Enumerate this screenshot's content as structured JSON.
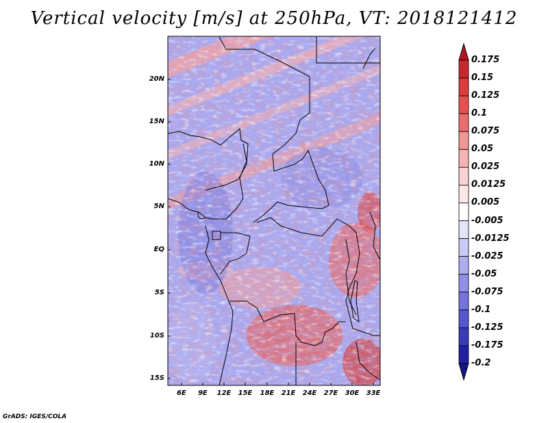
{
  "title": "Vertical velocity [m/s] at 250hPa, VT: 2018121412",
  "footer": "GrADS: IGES/COLA",
  "map": {
    "lat_labels": [
      "20N",
      "15N",
      "10N",
      "5N",
      "EQ",
      "5S",
      "10S",
      "15S"
    ],
    "lon_labels": [
      "6E",
      "9E",
      "12E",
      "15E",
      "18E",
      "21E",
      "24E",
      "27E",
      "30E",
      "33E"
    ]
  },
  "colorbar": {
    "levels": [
      "0.175",
      "0.15",
      "0.125",
      "0.1",
      "0.075",
      "0.05",
      "0.025",
      "0.0125",
      "0.005",
      "-0.005",
      "-0.0125",
      "-0.025",
      "-0.05",
      "-0.075",
      "-0.1",
      "-0.125",
      "-0.175",
      "-0.2"
    ],
    "colors": [
      "#b4141e",
      "#c8282d",
      "#dc3c3c",
      "#e65050",
      "#eb6e6e",
      "#f09696",
      "#f5b4b4",
      "#fad2d2",
      "#fde8e8",
      "#ffffff",
      "#e4e4fb",
      "#cacaf6",
      "#aeaeef",
      "#9090e6",
      "#7474db",
      "#5656cd",
      "#3a3ab9",
      "#2020a0",
      "#14148c"
    ]
  }
}
